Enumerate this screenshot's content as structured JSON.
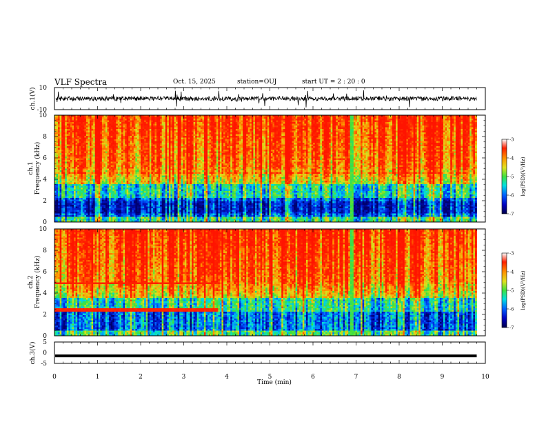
{
  "header": {
    "title": "VLF Spectra",
    "date": "Oct. 15, 2025",
    "station": "station=OUJ",
    "start": "start  UT =   2 : 20 : 0"
  },
  "chart_data": [
    {
      "type": "line",
      "panel": "ch.1 waveform",
      "ylabel": "ch.1(V)",
      "ylim": [
        -10,
        10
      ],
      "yticks": [
        "10",
        "-10"
      ],
      "xlim": [
        0,
        10
      ],
      "description_values": {
        "baseline": 0,
        "typical_amplitude": 2,
        "spike_amplitude": 8
      }
    },
    {
      "type": "heatmap",
      "panel": "ch.1 spectrogram",
      "ylabel": "ch.1",
      "ylabel2": "Frequency  (kHz)",
      "ylim": [
        0,
        10
      ],
      "yticks": [
        "0",
        "2",
        "4",
        "6",
        "8",
        "10"
      ],
      "xlim": [
        0,
        10
      ],
      "data_end_min": 9.8,
      "colorbar": {
        "label": "log(PSD)(V²/Hz)",
        "range": [
          -7,
          -3
        ],
        "ticks": [
          "-3",
          "-4",
          "-5",
          "-6",
          "-7"
        ]
      },
      "features": {
        "band_edge_khz": 4.6,
        "low_band_khz": [
          0.8,
          2.0
        ],
        "quiet_break_min": 6.9
      }
    },
    {
      "type": "heatmap",
      "panel": "ch.2 spectrogram",
      "ylabel": "ch.2",
      "ylabel2": "Frequency  (kHz)",
      "ylim": [
        0,
        10
      ],
      "yticks": [
        "0",
        "2",
        "4",
        "6",
        "8",
        "10"
      ],
      "xlim": [
        0,
        10
      ],
      "data_end_min": 9.8,
      "colorbar": {
        "label": "log(PSD)(V²/Hz)",
        "range": [
          -7,
          -3
        ],
        "ticks": [
          "-3",
          "-4",
          "-5",
          "-6",
          "-7"
        ]
      },
      "features": {
        "line_khz": [
          4.9,
          2.4
        ],
        "line_end_min": 3.8,
        "quiet_break_min": 6.9
      }
    },
    {
      "type": "line",
      "panel": "ch.3 waveform",
      "ylabel": "ch.3(V)",
      "ylim": [
        -5,
        5
      ],
      "yticks": [
        "5",
        "0",
        "-5"
      ],
      "xlim": [
        0,
        10
      ],
      "xlabel": "Time  (min)",
      "xticks": [
        "0",
        "1",
        "2",
        "3",
        "4",
        "5",
        "6",
        "7",
        "8",
        "9",
        "10"
      ],
      "values_constant": -1.5
    }
  ],
  "colors": {
    "red": "#ff2000",
    "orange": "#ff9000",
    "yellow": "#f0e000",
    "green": "#40e040",
    "cyan": "#00e0e0",
    "blue": "#0040ff",
    "navy": "#00008a"
  }
}
